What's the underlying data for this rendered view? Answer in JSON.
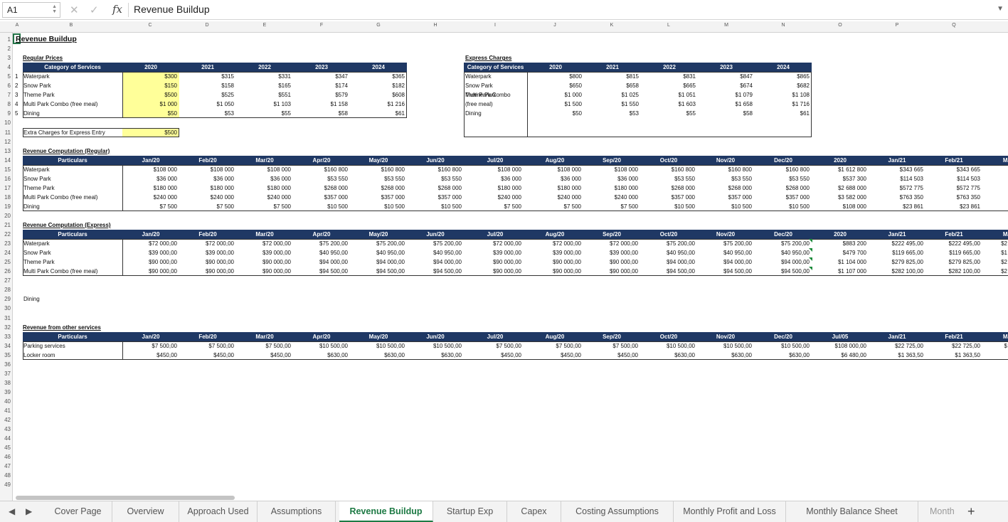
{
  "formula_bar": {
    "cell_ref": "A1",
    "cancel_icon": "x-icon",
    "enter_icon": "check-icon",
    "fx_label": "fx",
    "content": "Revenue Buildup"
  },
  "columns": [
    "A",
    "B",
    "C",
    "D",
    "E",
    "F",
    "G",
    "H",
    "I",
    "J",
    "K",
    "L",
    "M",
    "N",
    "O",
    "P",
    "Q"
  ],
  "rows": [
    "1",
    "2",
    "3",
    "4",
    "5",
    "6",
    "7",
    "8",
    "9",
    "10",
    "11",
    "12",
    "13",
    "14",
    "15",
    "16",
    "17",
    "18",
    "19",
    "20",
    "21",
    "22",
    "23",
    "24",
    "25",
    "26",
    "27",
    "28",
    "29",
    "30",
    "31",
    "32",
    "33",
    "34",
    "35",
    "36",
    "37",
    "38",
    "39",
    "40",
    "41",
    "42",
    "43",
    "44",
    "45",
    "46",
    "47",
    "48",
    "49"
  ],
  "sheet_title": "Revenue Buildup",
  "regular_prices": {
    "title": "Regular Prices",
    "header": "Category of Services",
    "years": [
      "2020",
      "2021",
      "2022",
      "2023",
      "2024"
    ],
    "rows": [
      {
        "num": "1",
        "name": "Waterpark",
        "vals": [
          "$300",
          "$315",
          "$331",
          "$347",
          "$365"
        ]
      },
      {
        "num": "2",
        "name": "Snow Park",
        "vals": [
          "$150",
          "$158",
          "$165",
          "$174",
          "$182"
        ]
      },
      {
        "num": "3",
        "name": "Theme Park",
        "vals": [
          "$500",
          "$525",
          "$551",
          "$579",
          "$608"
        ]
      },
      {
        "num": "4",
        "name": "Multi Park Combo (free meal)",
        "vals": [
          "$1 000",
          "$1 050",
          "$1 103",
          "$1 158",
          "$1 216"
        ]
      },
      {
        "num": "5",
        "name": "Dining",
        "vals": [
          "$50",
          "$53",
          "$55",
          "$58",
          "$61"
        ]
      }
    ]
  },
  "express_entry": {
    "label": "Extra Charges for Express Entry",
    "value": "$500"
  },
  "express_charges": {
    "title": "Express Charges",
    "header": "Category of Services",
    "years": [
      "2020",
      "2021",
      "2022",
      "2023",
      "2024"
    ],
    "rows": [
      {
        "name": "Waterpark",
        "vals": [
          "$800",
          "$815",
          "$831",
          "$847",
          "$865"
        ]
      },
      {
        "name": "Snow Park",
        "vals": [
          "$650",
          "$658",
          "$665",
          "$674",
          "$682"
        ]
      },
      {
        "name": "Theme Park",
        "vals": [
          "$1 000",
          "$1 025",
          "$1 051",
          "$1 079",
          "$1 108"
        ]
      },
      {
        "name": "Multi Park Combo",
        "name2": "(free meal)",
        "vals": [
          "$1 500",
          "$1 550",
          "$1 603",
          "$1 658",
          "$1 716"
        ]
      },
      {
        "name": "Dining",
        "vals": [
          "$50",
          "$53",
          "$55",
          "$58",
          "$61"
        ]
      }
    ]
  },
  "rev_regular": {
    "title": "Revenue Computation (Regular)",
    "header": "Particulars",
    "cols": [
      "Jan/20",
      "Feb/20",
      "Mar/20",
      "Apr/20",
      "May/20",
      "Jun/20",
      "Jul/20",
      "Aug/20",
      "Sep/20",
      "Oct/20",
      "Nov/20",
      "Dec/20",
      "2020",
      "Jan/21",
      "Feb/21",
      "Ma"
    ],
    "rows": [
      {
        "name": "Waterpark",
        "vals": [
          "$108 000",
          "$108 000",
          "$108 000",
          "$160 800",
          "$160 800",
          "$160 800",
          "$108 000",
          "$108 000",
          "$108 000",
          "$160 800",
          "$160 800",
          "$160 800",
          "$1 612 800",
          "$343 665",
          "$343 665"
        ]
      },
      {
        "name": "Snow Park",
        "vals": [
          "$36 000",
          "$36 000",
          "$36 000",
          "$53 550",
          "$53 550",
          "$53 550",
          "$36 000",
          "$36 000",
          "$36 000",
          "$53 550",
          "$53 550",
          "$53 550",
          "$537 300",
          "$114 503",
          "$114 503"
        ]
      },
      {
        "name": "Theme Park",
        "vals": [
          "$180 000",
          "$180 000",
          "$180 000",
          "$268 000",
          "$268 000",
          "$268 000",
          "$180 000",
          "$180 000",
          "$180 000",
          "$268 000",
          "$268 000",
          "$268 000",
          "$2 688 000",
          "$572 775",
          "$572 775"
        ]
      },
      {
        "name": "Multi Park Combo (free meal)",
        "vals": [
          "$240 000",
          "$240 000",
          "$240 000",
          "$357 000",
          "$357 000",
          "$357 000",
          "$240 000",
          "$240 000",
          "$240 000",
          "$357 000",
          "$357 000",
          "$357 000",
          "$3 582 000",
          "$763 350",
          "$763 350"
        ]
      },
      {
        "name": "Dining",
        "vals": [
          "$7 500",
          "$7 500",
          "$7 500",
          "$10 500",
          "$10 500",
          "$10 500",
          "$7 500",
          "$7 500",
          "$7 500",
          "$10 500",
          "$10 500",
          "$10 500",
          "$108 000",
          "$23 861",
          "$23 861"
        ]
      }
    ]
  },
  "rev_express": {
    "title": "Revenue Computation (Express)",
    "header": "Particulars",
    "cols": [
      "Jan/20",
      "Feb/20",
      "Mar/20",
      "Apr/20",
      "May/20",
      "Jun/20",
      "Jul/20",
      "Aug/20",
      "Sep/20",
      "Oct/20",
      "Nov/20",
      "Dec/20",
      "2020",
      "Jan/21",
      "Feb/21",
      "Ma"
    ],
    "rows": [
      {
        "name": "Waterpark",
        "vals": [
          "$72 000,00",
          "$72 000,00",
          "$72 000,00",
          "$75 200,00",
          "$75 200,00",
          "$75 200,00",
          "$72 000,00",
          "$72 000,00",
          "$72 000,00",
          "$75 200,00",
          "$75 200,00",
          "$75 200,00",
          "$883 200",
          "$222 495,00",
          "$222 495,00",
          "$2"
        ]
      },
      {
        "name": "Snow Park",
        "vals": [
          "$39 000,00",
          "$39 000,00",
          "$39 000,00",
          "$40 950,00",
          "$40 950,00",
          "$40 950,00",
          "$39 000,00",
          "$39 000,00",
          "$39 000,00",
          "$40 950,00",
          "$40 950,00",
          "$40 950,00",
          "$479 700",
          "$119 665,00",
          "$119 665,00",
          "$1"
        ]
      },
      {
        "name": "Theme Park",
        "vals": [
          "$90 000,00",
          "$90 000,00",
          "$90 000,00",
          "$94 000,00",
          "$94 000,00",
          "$94 000,00",
          "$90 000,00",
          "$90 000,00",
          "$90 000,00",
          "$94 000,00",
          "$94 000,00",
          "$94 000,00",
          "$1 104 000",
          "$279 825,00",
          "$279 825,00",
          "$2"
        ]
      },
      {
        "name": "Multi Park Combo (free meal)",
        "vals": [
          "$90 000,00",
          "$90 000,00",
          "$90 000,00",
          "$94 500,00",
          "$94 500,00",
          "$94 500,00",
          "$90 000,00",
          "$90 000,00",
          "$90 000,00",
          "$94 500,00",
          "$94 500,00",
          "$94 500,00",
          "$1 107 000",
          "$282 100,00",
          "$282 100,00",
          "$2"
        ]
      }
    ]
  },
  "dining_label": "Dining",
  "rev_other": {
    "title": "Revenue from other services",
    "header": "Particulars",
    "cols": [
      "Jan/20",
      "Feb/20",
      "Mar/20",
      "Apr/20",
      "May/20",
      "Jun/20",
      "Jul/20",
      "Aug/20",
      "Sep/20",
      "Oct/20",
      "Nov/20",
      "Dec/20",
      "Jul/05",
      "Jan/21",
      "Feb/21",
      "Ma"
    ],
    "rows": [
      {
        "name": "Parking services",
        "vals": [
          "$7 500,00",
          "$7 500,00",
          "$7 500,00",
          "$10 500,00",
          "$10 500,00",
          "$10 500,00",
          "$7 500,00",
          "$7 500,00",
          "$7 500,00",
          "$10 500,00",
          "$10 500,00",
          "$10 500,00",
          "$108 000,00",
          "$22 725,00",
          "$22 725,00",
          "$"
        ]
      },
      {
        "name": "Locker room",
        "vals": [
          "$450,00",
          "$450,00",
          "$450,00",
          "$630,00",
          "$630,00",
          "$630,00",
          "$450,00",
          "$450,00",
          "$450,00",
          "$630,00",
          "$630,00",
          "$630,00",
          "$6 480,00",
          "$1 363,50",
          "$1 363,50"
        ]
      }
    ]
  },
  "tabs": [
    "Cover Page",
    "Overview",
    "Approach Used",
    "Assumptions",
    "Revenue Buildup",
    "Startup Exp",
    "Capex",
    "Costing Assumptions",
    "Monthly Profit and Loss",
    "Monthly Balance Sheet",
    "Month"
  ],
  "active_tab": "Revenue Buildup",
  "nav": {
    "prev": "◀",
    "next": "▶",
    "add": "+"
  },
  "colors": {
    "header_band": "#1f3864",
    "input_yellow": "#ffff99",
    "active_tab": "#1d7a44"
  }
}
